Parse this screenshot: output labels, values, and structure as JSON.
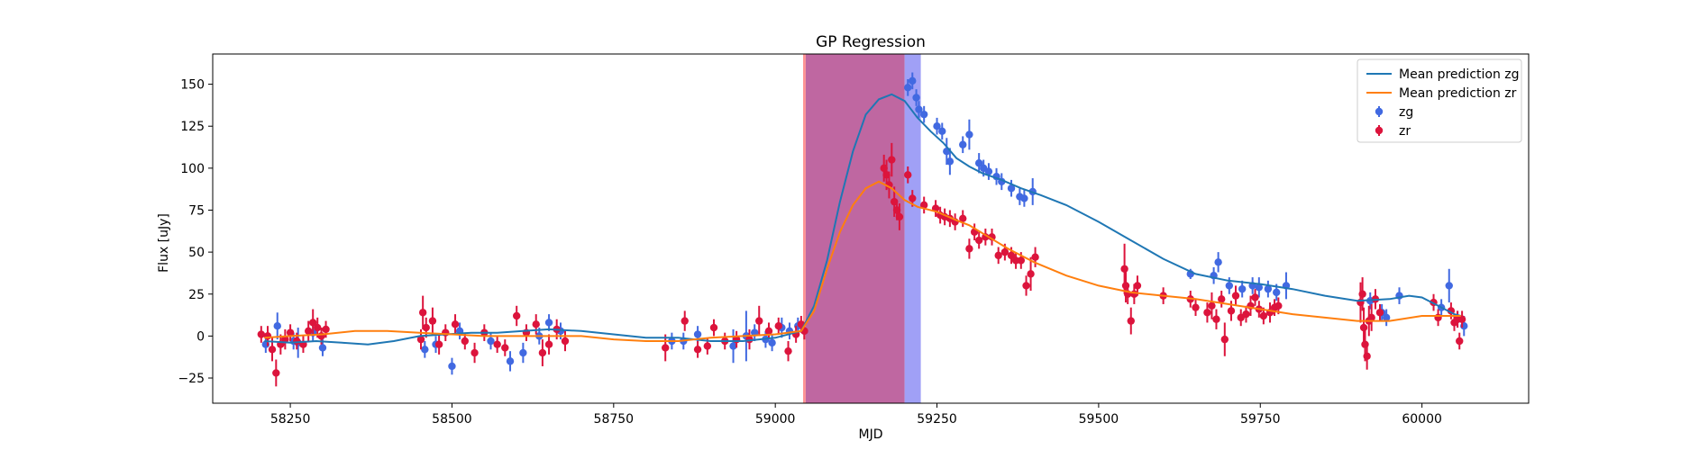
{
  "chart_data": {
    "type": "scatter",
    "title": "GP Regression",
    "xlabel": "MJD",
    "ylabel": "Flux [uJy]",
    "xlim": [
      58130,
      60165
    ],
    "ylim": [
      -40,
      168
    ],
    "xticks": [
      58250,
      58500,
      58750,
      59000,
      59250,
      59500,
      59750,
      60000
    ],
    "yticks": [
      -25,
      0,
      25,
      50,
      75,
      100,
      125,
      150
    ],
    "legend_position": "top-right",
    "grid": false,
    "colors": {
      "zg_line": "#1f77b4",
      "zr_line": "#ff7f0e",
      "zg_points": "#4169e1",
      "zr_points": "#dc143c"
    },
    "shaded_regions": [
      {
        "x0": 59043,
        "x1": 59047,
        "color": "#ff6f6f",
        "opacity": 0.75
      },
      {
        "x0": 59047,
        "x1": 59200,
        "color": "#bf67a1",
        "opacity": 1.0
      },
      {
        "x0": 59200,
        "x1": 59225,
        "color": "#8f8ff5",
        "opacity": 0.85
      }
    ],
    "legend": [
      {
        "label": "Mean prediction zg",
        "kind": "line",
        "color": "#1f77b4"
      },
      {
        "label": "Mean prediction zr",
        "kind": "line",
        "color": "#ff7f0e"
      },
      {
        "label": "zg",
        "kind": "marker",
        "color": "#4169e1"
      },
      {
        "label": "zr",
        "kind": "marker",
        "color": "#dc143c"
      }
    ],
    "series": [
      {
        "name": "Mean prediction zg",
        "kind": "line",
        "x": [
          58210,
          58250,
          58290,
          58330,
          58370,
          58410,
          58450,
          58490,
          58530,
          58570,
          58610,
          58650,
          58700,
          58750,
          58800,
          58850,
          58900,
          58950,
          59000,
          59040,
          59060,
          59080,
          59100,
          59120,
          59140,
          59160,
          59180,
          59200,
          59220,
          59240,
          59260,
          59280,
          59300,
          59320,
          59350,
          59380,
          59410,
          59450,
          59500,
          59550,
          59600,
          59650,
          59700,
          59750,
          59800,
          59850,
          59900,
          59950,
          59980,
          60000,
          60020,
          60050,
          60060
        ],
        "y": [
          -3,
          -4,
          -3,
          -4,
          -5,
          -3,
          0,
          1,
          2,
          2,
          3,
          4,
          3,
          1,
          -1,
          -1,
          -3,
          -3,
          -1,
          3,
          18,
          45,
          80,
          110,
          132,
          141,
          144,
          140,
          130,
          122,
          115,
          106,
          101,
          97,
          93,
          88,
          84,
          78,
          68,
          57,
          46,
          37,
          33,
          31,
          28,
          24,
          21,
          22,
          24,
          23,
          19,
          13,
          12
        ]
      },
      {
        "name": "Mean prediction zr",
        "kind": "line",
        "x": [
          58210,
          58250,
          58300,
          58350,
          58400,
          58450,
          58500,
          58550,
          58600,
          58650,
          58700,
          58750,
          58800,
          58850,
          58900,
          58950,
          59000,
          59040,
          59060,
          59080,
          59100,
          59120,
          59140,
          59160,
          59180,
          59200,
          59220,
          59250,
          59280,
          59300,
          59330,
          59360,
          59400,
          59450,
          59500,
          59550,
          59600,
          59650,
          59700,
          59750,
          59800,
          59850,
          59900,
          59950,
          60000,
          60050,
          60060
        ],
        "y": [
          -1,
          0,
          1,
          3,
          3,
          2,
          1,
          0,
          0,
          0,
          0,
          -2,
          -3,
          -3,
          -1,
          0,
          1,
          3,
          15,
          40,
          62,
          78,
          88,
          92,
          88,
          81,
          77,
          74,
          69,
          66,
          59,
          52,
          44,
          36,
          30,
          26,
          24,
          22,
          19,
          16,
          13,
          11,
          9,
          9,
          12,
          12,
          12
        ]
      },
      {
        "name": "zg",
        "kind": "points",
        "x": [
          58212,
          58230,
          58255,
          58262,
          58285,
          58300,
          58458,
          58475,
          58500,
          58512,
          58560,
          58590,
          58610,
          58635,
          58650,
          58668,
          58840,
          58858,
          58880,
          58935,
          58955,
          58968,
          58985,
          58995,
          59010,
          59022,
          59035,
          59045,
          59205,
          59212,
          59218,
          59222,
          59230,
          59250,
          59258,
          59265,
          59270,
          59290,
          59300,
          59315,
          59322,
          59330,
          59342,
          59350,
          59365,
          59378,
          59385,
          59398,
          59642,
          59678,
          59685,
          59702,
          59722,
          59738,
          59748,
          59762,
          59775,
          59790,
          59920,
          59938,
          59945,
          59965,
          60030,
          60042,
          60055,
          60065
        ],
        "y": [
          -5,
          6,
          -3,
          -4,
          2,
          -7,
          -8,
          -5,
          -18,
          3,
          -3,
          -15,
          -10,
          0,
          8,
          3,
          -3,
          -3,
          1,
          -6,
          0,
          2,
          -2,
          -4,
          5,
          3,
          6,
          3,
          148,
          152,
          142,
          135,
          132,
          125,
          122,
          110,
          104,
          114,
          120,
          103,
          100,
          98,
          95,
          92,
          88,
          83,
          82,
          86,
          37,
          36,
          44,
          30,
          28,
          30,
          29,
          28,
          26,
          30,
          21,
          14,
          11,
          24,
          17,
          30,
          10,
          6
        ],
        "err": [
          5,
          8,
          5,
          9,
          5,
          5,
          5,
          5,
          5,
          5,
          5,
          6,
          6,
          5,
          5,
          5,
          5,
          5,
          5,
          10,
          15,
          5,
          5,
          5,
          6,
          5,
          5,
          5,
          5,
          5,
          5,
          5,
          5,
          5,
          5,
          8,
          8,
          5,
          9,
          6,
          5,
          5,
          5,
          5,
          5,
          5,
          5,
          8,
          3,
          5,
          6,
          5,
          5,
          5,
          6,
          5,
          5,
          8,
          5,
          5,
          5,
          5,
          5,
          10,
          5,
          6
        ]
      },
      {
        "name": "zr",
        "kind": "points",
        "x": [
          58205,
          58215,
          58222,
          58228,
          58235,
          58242,
          58250,
          58260,
          58270,
          58278,
          58285,
          58292,
          58298,
          58305,
          58452,
          58455,
          58460,
          58470,
          58480,
          58490,
          58505,
          58520,
          58535,
          58550,
          58570,
          58582,
          58600,
          58615,
          58630,
          58640,
          58650,
          58662,
          58675,
          58830,
          58860,
          58880,
          58895,
          58905,
          58922,
          58940,
          58960,
          58975,
          58990,
          59005,
          59020,
          59032,
          59040,
          59045,
          59168,
          59172,
          59176,
          59180,
          59184,
          59188,
          59192,
          59205,
          59212,
          59230,
          59248,
          59255,
          59262,
          59270,
          59278,
          59290,
          59300,
          59308,
          59315,
          59325,
          59335,
          59345,
          59355,
          59365,
          59372,
          59380,
          59388,
          59395,
          59402,
          59540,
          59542,
          59545,
          59550,
          59555,
          59560,
          59600,
          59642,
          59650,
          59668,
          59675,
          59682,
          59690,
          59695,
          59705,
          59712,
          59720,
          59728,
          59735,
          59742,
          59748,
          59755,
          59765,
          59772,
          59778,
          59905,
          59908,
          59910,
          59912,
          59915,
          59918,
          59922,
          59928,
          59935,
          60018,
          60025,
          60045,
          60050,
          60055,
          60058,
          60062
        ],
        "y": [
          1,
          0,
          -8,
          -22,
          -5,
          -2,
          2,
          -3,
          -5,
          3,
          8,
          5,
          0,
          4,
          -2,
          14,
          5,
          9,
          -5,
          2,
          7,
          -3,
          -10,
          2,
          -5,
          -7,
          12,
          2,
          7,
          -10,
          -5,
          4,
          -3,
          -7,
          9,
          -8,
          -6,
          5,
          -3,
          -2,
          -2,
          9,
          3,
          6,
          -9,
          1,
          7,
          3,
          100,
          96,
          90,
          105,
          80,
          75,
          71,
          96,
          82,
          78,
          76,
          72,
          71,
          70,
          68,
          70,
          52,
          62,
          57,
          59,
          59,
          48,
          50,
          48,
          45,
          45,
          30,
          37,
          47,
          40,
          30,
          25,
          9,
          25,
          30,
          24,
          22,
          17,
          14,
          18,
          10,
          22,
          -2,
          15,
          24,
          11,
          13,
          18,
          23,
          16,
          12,
          14,
          17,
          18,
          20,
          25,
          5,
          -5,
          -12,
          9,
          11,
          22,
          14,
          20,
          11,
          15,
          8,
          10,
          -3,
          10
        ],
        "err": [
          5,
          6,
          7,
          8,
          6,
          6,
          5,
          5,
          5,
          6,
          8,
          6,
          5,
          5,
          6,
          10,
          6,
          8,
          6,
          5,
          6,
          5,
          6,
          5,
          5,
          5,
          6,
          5,
          6,
          8,
          6,
          6,
          6,
          8,
          6,
          5,
          5,
          5,
          5,
          5,
          6,
          9,
          5,
          5,
          6,
          5,
          5,
          5,
          8,
          9,
          8,
          10,
          9,
          6,
          8,
          5,
          5,
          5,
          5,
          5,
          5,
          5,
          5,
          5,
          6,
          5,
          5,
          5,
          5,
          5,
          5,
          5,
          5,
          5,
          6,
          10,
          6,
          15,
          10,
          6,
          8,
          6,
          6,
          5,
          5,
          5,
          6,
          8,
          6,
          5,
          10,
          6,
          6,
          5,
          5,
          6,
          5,
          5,
          5,
          6,
          5,
          5,
          12,
          10,
          12,
          10,
          8,
          9,
          8,
          6,
          5,
          5,
          5,
          5,
          5,
          5,
          5,
          5
        ]
      }
    ]
  }
}
